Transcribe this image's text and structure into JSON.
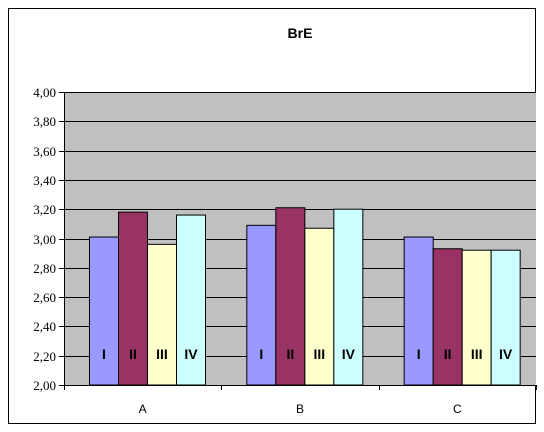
{
  "chart_data": {
    "type": "bar",
    "title": "BrE",
    "xlabel": "",
    "ylabel": "",
    "categories": [
      "A",
      "B",
      "C"
    ],
    "ylim": [
      2.0,
      4.0
    ],
    "yticks": [
      "2,00",
      "2,20",
      "2,40",
      "2,60",
      "2,80",
      "3,00",
      "3,20",
      "3,40",
      "3,60",
      "3,80",
      "4,00"
    ],
    "grid": true,
    "legend": "none",
    "series": [
      {
        "name": "I",
        "color": "#9999ff",
        "values": [
          3.01,
          3.09,
          3.01
        ]
      },
      {
        "name": "II",
        "color": "#993366",
        "values": [
          3.18,
          3.21,
          2.93
        ]
      },
      {
        "name": "III",
        "color": "#ffffcc",
        "values": [
          2.96,
          3.07,
          2.92
        ]
      },
      {
        "name": "IV",
        "color": "#ccffff",
        "values": [
          3.16,
          3.2,
          2.92
        ]
      }
    ],
    "plot_background": "#c0c0c0"
  }
}
